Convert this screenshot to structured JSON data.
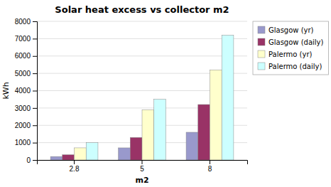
{
  "chart_data": {
    "type": "bar",
    "title": "Solar heat excess vs collector m2",
    "xlabel": "m2",
    "ylabel": "kWh",
    "categories": [
      "2.8",
      "5",
      "8"
    ],
    "series": [
      {
        "name": "Glasgow (yr)",
        "color": "#9999cc",
        "values": [
          200,
          700,
          1600
        ]
      },
      {
        "name": "Glasgow (daily)",
        "color": "#993366",
        "values": [
          300,
          1300,
          3200
        ]
      },
      {
        "name": "Palermo (yr)",
        "color": "#ffffcc",
        "values": [
          700,
          2900,
          5200
        ]
      },
      {
        "name": "Palermo (daily)",
        "color": "#ccffff",
        "values": [
          1000,
          3500,
          7200
        ]
      }
    ],
    "ylim": [
      0,
      8000
    ],
    "yticks": [
      0,
      1000,
      2000,
      3000,
      4000,
      5000,
      6000,
      7000,
      8000
    ],
    "grid": true,
    "legend": "right"
  }
}
